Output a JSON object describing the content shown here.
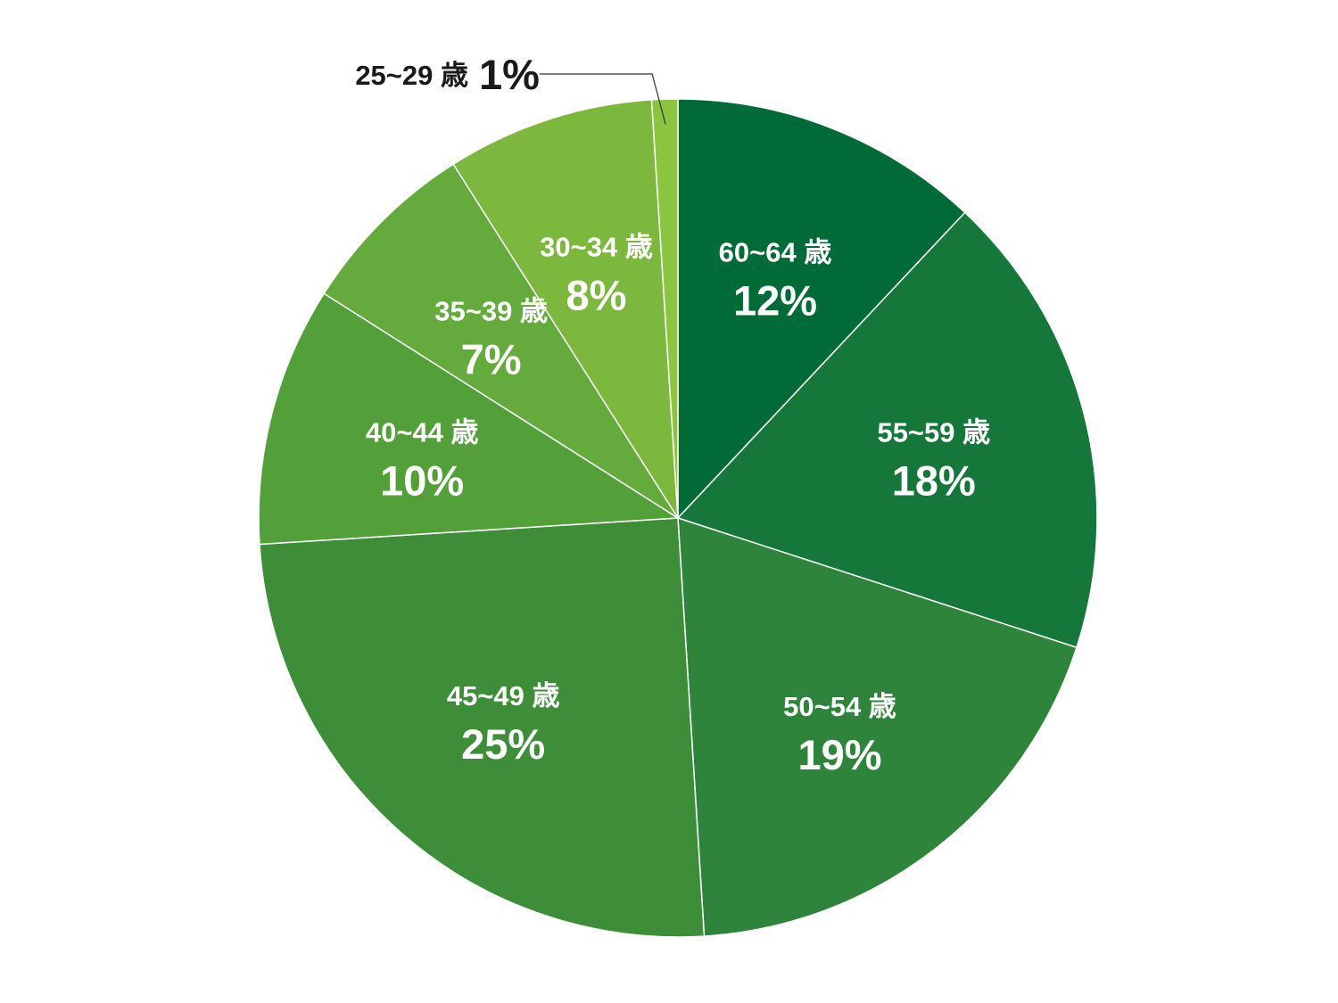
{
  "chart_data": {
    "type": "pie",
    "title": "",
    "start": "12 o'clock",
    "direction": "clockwise",
    "slices": [
      {
        "label": "60~64 歳",
        "value": 12,
        "display": "12%",
        "color": "#006B37",
        "label_placement": "inside"
      },
      {
        "label": "55~59 歳",
        "value": 18,
        "display": "18%",
        "color": "#16773A",
        "label_placement": "inside"
      },
      {
        "label": "50~54 歳",
        "value": 19,
        "display": "19%",
        "color": "#2D843A",
        "label_placement": "inside"
      },
      {
        "label": "45~49 歳",
        "value": 25,
        "display": "25%",
        "color": "#3E8E39",
        "label_placement": "inside"
      },
      {
        "label": "40~44 歳",
        "value": 10,
        "display": "10%",
        "color": "#53A03A",
        "label_placement": "inside"
      },
      {
        "label": "35~39 歳",
        "value": 7,
        "display": "7%",
        "color": "#65AA3C",
        "label_placement": "inside"
      },
      {
        "label": "30~34 歳",
        "value": 8,
        "display": "8%",
        "color": "#7CB83D",
        "label_placement": "inside"
      },
      {
        "label": "25~29 歳",
        "value": 1,
        "display": "1%",
        "color": "#8BC43E",
        "label_placement": "outside-top-left"
      }
    ]
  }
}
